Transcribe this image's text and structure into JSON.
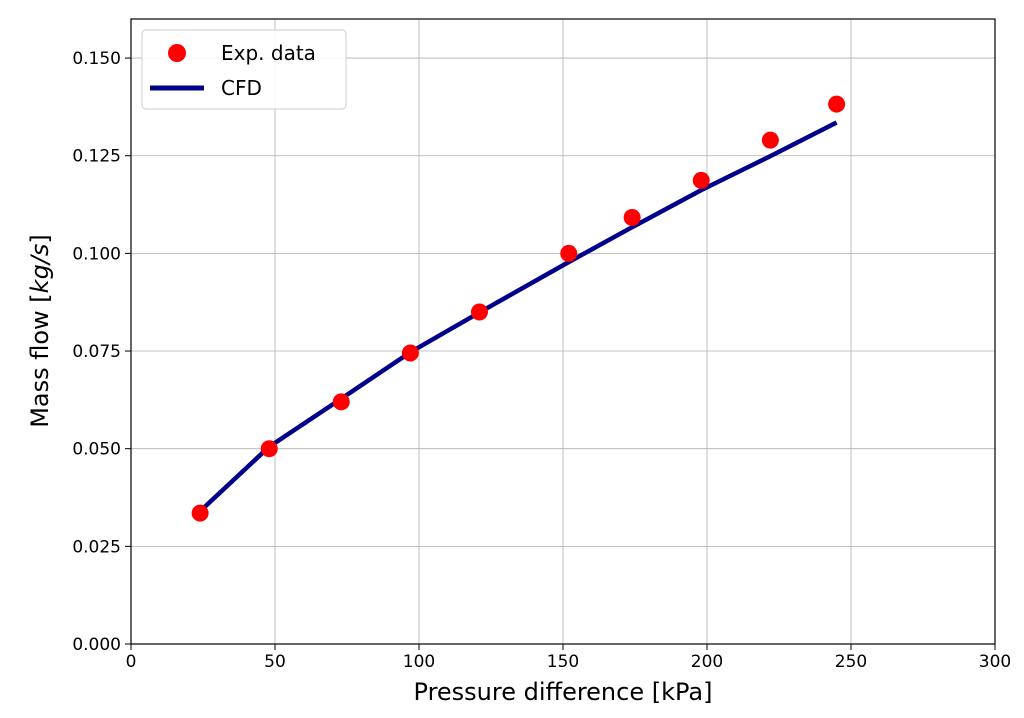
{
  "chart_data": {
    "type": "scatter",
    "title": "",
    "xlabel": "Pressure difference [kPa]",
    "ylabel": {
      "prefix": "Mass flow [",
      "italic": "kg/s",
      "suffix": "]"
    },
    "xlim": [
      0,
      300
    ],
    "ylim": [
      0,
      0.16
    ],
    "xticks": [
      0,
      50,
      100,
      150,
      200,
      250,
      300
    ],
    "yticks": [
      0,
      0.025,
      0.05,
      0.075,
      0.1,
      0.125,
      0.15
    ],
    "xtick_labels": [
      "0",
      "50",
      "100",
      "150",
      "200",
      "250",
      "300"
    ],
    "ytick_labels": [
      "0.000",
      "0.025",
      "0.050",
      "0.075",
      "0.100",
      "0.125",
      "0.150"
    ],
    "grid": true,
    "legend_position": "top-left",
    "series": [
      {
        "name": "Exp. data",
        "kind": "scatter",
        "color": "#ff0000",
        "x": [
          24,
          48,
          73,
          97,
          121,
          152,
          174,
          198,
          222,
          245
        ],
        "y": [
          0.0335,
          0.05,
          0.062,
          0.0745,
          0.085,
          0.1,
          0.1092,
          0.1187,
          0.129,
          0.1382
        ]
      },
      {
        "name": "CFD",
        "kind": "line",
        "color": "#00008b",
        "x": [
          24,
          48,
          73,
          97,
          121,
          152,
          174,
          198,
          222,
          245
        ],
        "y": [
          0.034,
          0.0505,
          0.0628,
          0.0747,
          0.0849,
          0.0978,
          0.1067,
          0.1162,
          0.1249,
          0.1335
        ]
      }
    ]
  }
}
